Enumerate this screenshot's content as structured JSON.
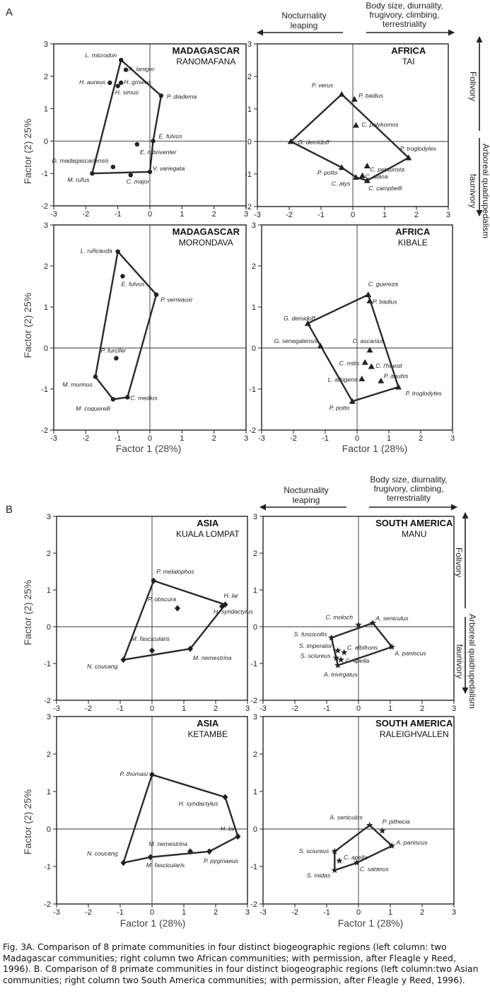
{
  "figure": {
    "label_a": "A",
    "label_b": "B",
    "arrow_left_label": [
      "Nocturnality",
      "leaping"
    ],
    "arrow_right_label": [
      "Body size, diurnality,",
      "frugivory, climbing,",
      "terrestriality"
    ],
    "arrow_up_label": "Folivory",
    "arrow_down_label": [
      "Arboreal quadrupedalism",
      "faunivory"
    ],
    "xlabel": "Factor 1 (28%)",
    "ylabel": "Factor (2) 25%"
  },
  "caption": "Fig. 3A. Comparison of 8 primate communities in four distinct biogeographic regions (left column: two Madagascar communities; right column two African communities; with permission, after Fleagle y Reed, 1996). B. Comparison of 8 primate communities in four distinct biogeographic regions (left column:two Asian communities; right column two South America communities; with permission, after Fleagle y Reed, 1996).",
  "chart_data": [
    {
      "type": "scatter",
      "region": "MADAGASCAR",
      "site": "RANOMAFANA",
      "marker": "circle",
      "xlim": [
        -3,
        3
      ],
      "ylim": [
        -2,
        3
      ],
      "x_ticks": [
        "-3",
        "-2",
        "-1",
        "0",
        "1",
        "2",
        "3"
      ],
      "y_ticks": [
        "3",
        "2",
        "1",
        "0",
        "-1",
        "-2"
      ],
      "points": [
        {
          "name": "L. microdon",
          "x": -0.9,
          "y": 2.5
        },
        {
          "name": "A. laniger",
          "x": -0.75,
          "y": 2.2
        },
        {
          "name": "H. aureus",
          "x": -1.25,
          "y": 1.8
        },
        {
          "name": "H. griseus",
          "x": -0.9,
          "y": 1.8
        },
        {
          "name": "H. simus",
          "x": -1.0,
          "y": 1.7
        },
        {
          "name": "P. diadema",
          "x": 0.35,
          "y": 1.4
        },
        {
          "name": "E. fulvus",
          "x": 0.1,
          "y": 0.0
        },
        {
          "name": "E. rubriventer",
          "x": -0.4,
          "y": -0.1
        },
        {
          "name": "D. madagascariensis",
          "x": -1.15,
          "y": -0.8
        },
        {
          "name": "V. variegata",
          "x": 0.0,
          "y": -0.95
        },
        {
          "name": "M. rufus",
          "x": -1.8,
          "y": -1.0
        },
        {
          "name": "C. major",
          "x": -0.6,
          "y": -1.05
        }
      ],
      "hull": [
        "L. microdon",
        "P. diadema",
        "E. fulvus",
        "V. variegata",
        "M. rufus"
      ]
    },
    {
      "type": "scatter",
      "region": "AFRICA",
      "site": "TAI",
      "marker": "triangle",
      "xlim": [
        -3,
        3
      ],
      "ylim": [
        -2,
        3
      ],
      "x_ticks": [
        "-3",
        "-2",
        "-1",
        "0",
        "1",
        "2",
        "3"
      ],
      "y_ticks": [
        "3",
        "2",
        "1",
        "0",
        "-1",
        "-2"
      ],
      "points": [
        {
          "name": "P. verus",
          "x": -0.35,
          "y": 1.45
        },
        {
          "name": "P. badius",
          "x": 0.05,
          "y": 1.3
        },
        {
          "name": "C. polykomos",
          "x": 0.1,
          "y": 0.5
        },
        {
          "name": "G. demidoff",
          "x": -1.95,
          "y": 0.0
        },
        {
          "name": "P. troglodytes",
          "x": 1.75,
          "y": -0.5
        },
        {
          "name": "C. petaurista",
          "x": 0.45,
          "y": -0.75
        },
        {
          "name": "P. potto",
          "x": -0.35,
          "y": -0.8
        },
        {
          "name": "C. diana",
          "x": 0.3,
          "y": -1.05
        },
        {
          "name": "C. atys",
          "x": 0.1,
          "y": -1.1
        },
        {
          "name": "C. campbelli",
          "x": 0.45,
          "y": -1.2
        }
      ],
      "hull": [
        "P. verus",
        "P. troglodytes",
        "C. campbelli",
        "C. atys",
        "P. potto",
        "G. demidoff"
      ]
    },
    {
      "type": "scatter",
      "region": "MADAGASCAR",
      "site": "MORONDAVA",
      "marker": "circle",
      "xlim": [
        -3,
        3
      ],
      "ylim": [
        -2,
        3
      ],
      "x_ticks": [
        "-3",
        "-2",
        "-1",
        "0",
        "1",
        "2",
        "3"
      ],
      "y_ticks": [
        "3",
        "2",
        "1",
        "0",
        "-1",
        "-2"
      ],
      "points": [
        {
          "name": "L. ruficauda",
          "x": -1.0,
          "y": 2.35
        },
        {
          "name": "E. fulvus",
          "x": -0.85,
          "y": 1.75
        },
        {
          "name": "P. verreauxi",
          "x": 0.2,
          "y": 1.3
        },
        {
          "name": "P. furcifer",
          "x": -1.05,
          "y": -0.25
        },
        {
          "name": "M. murinus",
          "x": -1.7,
          "y": -0.7
        },
        {
          "name": "M. coquerelli",
          "x": -1.15,
          "y": -1.25
        },
        {
          "name": "C. medius",
          "x": -0.7,
          "y": -1.2
        }
      ],
      "hull": [
        "L. ruficauda",
        "P. verreauxi",
        "C. medius",
        "M. coquerelli",
        "M. murinus"
      ]
    },
    {
      "type": "scatter",
      "region": "AFRICA",
      "site": "KIBALE",
      "marker": "triangle",
      "xlim": [
        -3,
        3
      ],
      "ylim": [
        -2,
        3
      ],
      "x_ticks": [
        "-3",
        "-2",
        "-1",
        "0",
        "1",
        "2",
        "3"
      ],
      "y_ticks": [
        "3",
        "2",
        "1",
        "0",
        "-1",
        "-2"
      ],
      "points": [
        {
          "name": "C. guereza",
          "x": 0.35,
          "y": 1.3
        },
        {
          "name": "P. badius",
          "x": 0.4,
          "y": 1.15
        },
        {
          "name": "G. demidoff",
          "x": -1.55,
          "y": 0.6
        },
        {
          "name": "G. senegalensis",
          "x": -1.15,
          "y": 0.05
        },
        {
          "name": "C. ascanius",
          "x": 0.4,
          "y": -0.05
        },
        {
          "name": "C. mitis",
          "x": 0.25,
          "y": -0.35
        },
        {
          "name": "C. l'hoesti",
          "x": 0.45,
          "y": -0.45
        },
        {
          "name": "L. albigena",
          "x": 0.15,
          "y": -0.75
        },
        {
          "name": "P. anubis",
          "x": 0.75,
          "y": -0.8
        },
        {
          "name": "P. troglodytes",
          "x": 1.3,
          "y": -0.95
        },
        {
          "name": "P. potto",
          "x": -0.15,
          "y": -1.3
        }
      ],
      "hull": [
        "C. guereza",
        "P. troglodytes",
        "P. potto",
        "G. demidoff"
      ]
    },
    {
      "type": "scatter",
      "region": "ASIA",
      "site": "KUALA LOMPAT",
      "marker": "diamond",
      "xlim": [
        -3,
        3
      ],
      "ylim": [
        -2,
        3
      ],
      "x_ticks": [
        "-3",
        "-2",
        "-1",
        "0",
        "1",
        "2",
        "3"
      ],
      "y_ticks": [
        "3",
        "2",
        "1",
        "0",
        "-1",
        "-2"
      ],
      "points": [
        {
          "name": "P. melalophos",
          "x": 0.05,
          "y": 1.25
        },
        {
          "name": "P. obscura",
          "x": 0.8,
          "y": 0.5
        },
        {
          "name": "H. lar",
          "x": 2.3,
          "y": 0.6
        },
        {
          "name": "H. syndactylus",
          "x": 2.2,
          "y": 0.55
        },
        {
          "name": "M. fascicularis",
          "x": 0.0,
          "y": -0.65
        },
        {
          "name": "M. nemestrina",
          "x": 1.2,
          "y": -0.6
        },
        {
          "name": "N. coucang",
          "x": -0.9,
          "y": -0.9
        }
      ],
      "hull": [
        "P. melalophos",
        "H. lar",
        "M. nemestrina",
        "N. coucang"
      ]
    },
    {
      "type": "scatter",
      "region": "SOUTH AMERICA",
      "site": "MANU",
      "marker": "star",
      "xlim": [
        -3,
        3
      ],
      "ylim": [
        -2,
        3
      ],
      "x_ticks": [
        "-3",
        "-2",
        "-1",
        "0",
        "1",
        "2",
        "3"
      ],
      "y_ticks": [
        "3",
        "2",
        "1",
        "0",
        "-1",
        "-2"
      ],
      "points": [
        {
          "name": "C. moloch",
          "x": 0.0,
          "y": 0.05
        },
        {
          "name": "A. seniculus",
          "x": 0.45,
          "y": 0.1
        },
        {
          "name": "S. fuscicollis",
          "x": -0.85,
          "y": -0.3
        },
        {
          "name": "C. albifrons",
          "x": -0.45,
          "y": -0.7
        },
        {
          "name": "S. imperator",
          "x": -0.65,
          "y": -0.65
        },
        {
          "name": "A. paniscus",
          "x": 1.05,
          "y": -0.55
        },
        {
          "name": "S. sciureus",
          "x": -0.7,
          "y": -0.85
        },
        {
          "name": "C. apella",
          "x": -0.55,
          "y": -0.9
        },
        {
          "name": "A. trivirgatus",
          "x": -0.65,
          "y": -1.05
        }
      ],
      "hull": [
        "S. fuscicollis",
        "A. seniculus",
        "A. paniscus",
        "A. trivirgatus"
      ]
    },
    {
      "type": "scatter",
      "region": "ASIA",
      "site": "KETAMBE",
      "marker": "diamond",
      "xlim": [
        -3,
        3
      ],
      "ylim": [
        -2,
        3
      ],
      "x_ticks": [
        "-3",
        "-2",
        "-1",
        "0",
        "1",
        "2",
        "3"
      ],
      "y_ticks": [
        "3",
        "2",
        "1",
        "0",
        "-1",
        "-2"
      ],
      "points": [
        {
          "name": "P. thomasi",
          "x": 0.0,
          "y": 1.45
        },
        {
          "name": "H. syndactylus",
          "x": 2.3,
          "y": 0.85
        },
        {
          "name": "H. lar",
          "x": 2.7,
          "y": -0.2
        },
        {
          "name": "M. nemestrina",
          "x": 1.2,
          "y": -0.6
        },
        {
          "name": "P. pygmaeus",
          "x": 1.8,
          "y": -0.6
        },
        {
          "name": "M. fascicularis",
          "x": -0.05,
          "y": -0.75
        },
        {
          "name": "N. coucang",
          "x": -0.9,
          "y": -0.9
        }
      ],
      "hull": [
        "P. thomasi",
        "H. syndactylus",
        "H. lar",
        "P. pygmaeus",
        "M. fascicularis",
        "N. coucang"
      ]
    },
    {
      "type": "scatter",
      "region": "SOUTH AMERICA",
      "site": "RALEIGHVALLEN",
      "marker": "star",
      "xlim": [
        -3,
        3
      ],
      "ylim": [
        -2,
        3
      ],
      "x_ticks": [
        "-3",
        "-2",
        "-1",
        "0",
        "1",
        "2",
        "3"
      ],
      "y_ticks": [
        "3",
        "2",
        "1",
        "0",
        "-1",
        "-2"
      ],
      "points": [
        {
          "name": "A. seniculus",
          "x": 0.35,
          "y": 0.1
        },
        {
          "name": "P. pithecia",
          "x": 0.75,
          "y": -0.05
        },
        {
          "name": "A. paniscus",
          "x": 1.05,
          "y": -0.45
        },
        {
          "name": "S. sciureus",
          "x": -0.75,
          "y": -0.6
        },
        {
          "name": "C. apella",
          "x": -0.6,
          "y": -0.85
        },
        {
          "name": "C. satanus",
          "x": -0.05,
          "y": -0.9
        },
        {
          "name": "S. midas",
          "x": -0.75,
          "y": -1.1
        }
      ],
      "hull": [
        "A. seniculus",
        "A. paniscus",
        "C. satanus",
        "S. midas",
        "S. sciureus"
      ]
    }
  ]
}
